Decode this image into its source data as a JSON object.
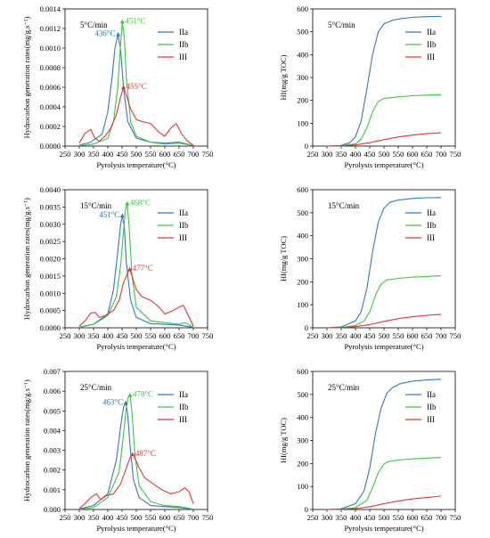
{
  "colors": {
    "IIa": "#2f78c4",
    "IIb": "#3cc83c",
    "III": "#e8342f",
    "axis": "#000000"
  },
  "chart_data": [
    {
      "type": "line",
      "annotation": "5°C/min",
      "xlabel": "Pyrolysis temperature(°C)",
      "ylabel": "Hydrocarbon generation rates(mg/g.s⁻¹)",
      "xlim": [
        250,
        750
      ],
      "ylim": [
        0,
        0.0014
      ],
      "xticks": [
        250,
        300,
        350,
        400,
        450,
        500,
        550,
        600,
        650,
        700,
        750
      ],
      "yticks": [
        "0.0000",
        "0.0002",
        "0.0004",
        "0.0006",
        "0.0008",
        "0.0010",
        "0.0012",
        "0.0014"
      ],
      "legend": "top-right",
      "series": [
        {
          "name": "IIa",
          "color_key": "IIa",
          "x": [
            300,
            340,
            380,
            400,
            415,
            425,
            436,
            445,
            455,
            470,
            500,
            550,
            600,
            650,
            700
          ],
          "y": [
            1e-05,
            4e-05,
            0.00012,
            0.00035,
            0.0007,
            0.001,
            0.00114,
            0.00098,
            0.0006,
            0.00025,
            8e-05,
            4e-05,
            3e-05,
            4e-05,
            5e-06
          ]
        },
        {
          "name": "IIb",
          "color_key": "IIb",
          "x": [
            300,
            350,
            400,
            420,
            435,
            445,
            451,
            458,
            465,
            480,
            500,
            550,
            600,
            650,
            700
          ],
          "y": [
            5e-06,
            2e-05,
            8e-05,
            0.00025,
            0.0006,
            0.00105,
            0.00127,
            0.0011,
            0.0007,
            0.00025,
            0.0001,
            4e-05,
            2e-05,
            3e-05,
            5e-06
          ]
        },
        {
          "name": "III",
          "color_key": "III",
          "x": [
            300,
            320,
            340,
            355,
            370,
            390,
            410,
            430,
            445,
            455,
            465,
            480,
            500,
            520,
            550,
            580,
            600,
            620,
            640,
            660,
            680,
            700
          ],
          "y": [
            3e-05,
            0.00013,
            0.00017,
            8e-05,
            5e-05,
            0.0001,
            0.00018,
            0.00032,
            0.0005,
            0.0006,
            0.00052,
            0.00038,
            0.00027,
            0.00025,
            0.00023,
            0.00014,
            0.0001,
            0.00018,
            0.00023,
            0.00012,
            5e-05,
            1e-05
          ]
        }
      ],
      "peak_labels": [
        {
          "text": "436°C",
          "x": 436,
          "y": 0.00114,
          "color_key": "IIa",
          "side": "left"
        },
        {
          "text": "451°C",
          "x": 451,
          "y": 0.00127,
          "color_key": "IIb",
          "side": "right"
        },
        {
          "text": "455°C",
          "x": 455,
          "y": 0.0006,
          "color_key": "III",
          "side": "right"
        }
      ]
    },
    {
      "type": "line",
      "annotation": "5°C/min",
      "xlabel": "Pyrolysis temperature(°C)",
      "ylabel": "HI(mg/g TOC)",
      "xlim": [
        250,
        750
      ],
      "ylim": [
        0,
        600
      ],
      "xticks": [
        250,
        300,
        350,
        400,
        450,
        500,
        550,
        600,
        650,
        700,
        750
      ],
      "yticks": [
        "0",
        "100",
        "200",
        "300",
        "400",
        "500",
        "600"
      ],
      "legend": "top-right",
      "series": [
        {
          "name": "IIa",
          "color_key": "IIa",
          "x": [
            300,
            350,
            380,
            400,
            420,
            440,
            460,
            480,
            500,
            530,
            560,
            600,
            650,
            700
          ],
          "y": [
            0,
            3,
            15,
            40,
            110,
            250,
            400,
            500,
            535,
            550,
            558,
            563,
            566,
            567
          ]
        },
        {
          "name": "IIb",
          "color_key": "IIb",
          "x": [
            300,
            350,
            400,
            420,
            440,
            460,
            480,
            500,
            550,
            600,
            650,
            700
          ],
          "y": [
            0,
            1,
            10,
            30,
            80,
            150,
            195,
            208,
            215,
            220,
            223,
            225
          ]
        },
        {
          "name": "III",
          "color_key": "III",
          "x": [
            300,
            350,
            400,
            450,
            500,
            550,
            600,
            650,
            700
          ],
          "y": [
            0,
            1,
            5,
            15,
            28,
            40,
            48,
            54,
            58
          ]
        }
      ]
    },
    {
      "type": "line",
      "annotation": "15°C/min",
      "xlabel": "Pyrolysis temperature(°C)",
      "ylabel": "Hydrocarbon generation rates(mg/g.s⁻¹)",
      "xlim": [
        250,
        750
      ],
      "ylim": [
        0,
        0.004
      ],
      "xticks": [
        250,
        300,
        350,
        400,
        450,
        500,
        550,
        600,
        650,
        700,
        750
      ],
      "yticks": [
        "0.0000",
        "0.0005",
        "0.0010",
        "0.0015",
        "0.0020",
        "0.0025",
        "0.0030",
        "0.0035",
        "0.0040"
      ],
      "legend": "top-right",
      "series": [
        {
          "name": "IIa",
          "color_key": "IIa",
          "x": [
            300,
            350,
            400,
            420,
            435,
            445,
            451,
            458,
            465,
            480,
            500,
            550,
            600,
            650,
            700
          ],
          "y": [
            2e-05,
            0.0001,
            0.0004,
            0.0011,
            0.0022,
            0.003,
            0.00325,
            0.0029,
            0.0019,
            0.0008,
            0.0003,
            0.00012,
            0.0001,
            8e-05,
            1e-05
          ]
        },
        {
          "name": "IIb",
          "color_key": "IIb",
          "x": [
            300,
            350,
            400,
            430,
            445,
            455,
            462,
            468,
            475,
            485,
            500,
            550,
            600,
            650,
            670,
            700
          ],
          "y": [
            1e-05,
            0.0001,
            0.00035,
            0.0009,
            0.0018,
            0.0028,
            0.0034,
            0.0036,
            0.0029,
            0.0015,
            0.0006,
            0.0002,
            0.00015,
            0.0001,
            0.00015,
            2e-05
          ]
        },
        {
          "name": "III",
          "color_key": "III",
          "x": [
            300,
            320,
            340,
            355,
            370,
            390,
            420,
            440,
            455,
            470,
            477,
            485,
            500,
            520,
            550,
            580,
            600,
            630,
            650,
            665,
            680,
            700
          ],
          "y": [
            5e-05,
            0.0002,
            0.00042,
            0.00045,
            0.0003,
            0.00035,
            0.0005,
            0.0008,
            0.0013,
            0.0016,
            0.0017,
            0.0015,
            0.0011,
            0.0009,
            0.0008,
            0.0006,
            0.0004,
            0.0005,
            0.0006,
            0.00065,
            0.0004,
            5e-05
          ]
        }
      ],
      "peak_labels": [
        {
          "text": "451°C",
          "x": 451,
          "y": 0.00325,
          "color_key": "IIa",
          "side": "left"
        },
        {
          "text": "468°C",
          "x": 468,
          "y": 0.0036,
          "color_key": "IIb",
          "side": "right"
        },
        {
          "text": "477°C",
          "x": 477,
          "y": 0.0017,
          "color_key": "III",
          "side": "right"
        }
      ]
    },
    {
      "type": "line",
      "annotation": "15°C/min",
      "xlabel": "Pyrolysis temperature(°C)",
      "ylabel": "HI(mg/g TOC)",
      "xlim": [
        250,
        750
      ],
      "ylim": [
        0,
        600
      ],
      "xticks": [
        250,
        300,
        350,
        400,
        450,
        500,
        550,
        600,
        650,
        700,
        750
      ],
      "yticks": [
        "0",
        "100",
        "200",
        "300",
        "400",
        "500",
        "600"
      ],
      "legend": "top-right",
      "series": [
        {
          "name": "IIa",
          "color_key": "IIa",
          "x": [
            300,
            350,
            400,
            420,
            440,
            460,
            480,
            500,
            520,
            550,
            600,
            650,
            700
          ],
          "y": [
            0,
            4,
            30,
            70,
            170,
            330,
            460,
            520,
            545,
            555,
            562,
            565,
            566
          ]
        },
        {
          "name": "IIb",
          "color_key": "IIb",
          "x": [
            300,
            350,
            400,
            430,
            450,
            470,
            490,
            510,
            550,
            600,
            650,
            700
          ],
          "y": [
            0,
            1,
            10,
            30,
            70,
            140,
            190,
            208,
            215,
            220,
            223,
            226
          ]
        },
        {
          "name": "III",
          "color_key": "III",
          "x": [
            300,
            350,
            400,
            450,
            500,
            550,
            600,
            650,
            700
          ],
          "y": [
            0,
            1,
            5,
            14,
            28,
            40,
            48,
            54,
            59
          ]
        }
      ]
    },
    {
      "type": "line",
      "annotation": "25°C/min",
      "xlabel": "Pyrolysis temperature(°C)",
      "ylabel": "Hydrocarbon generation rates(mg/g.s⁻¹)",
      "xlim": [
        250,
        750
      ],
      "ylim": [
        0,
        0.007
      ],
      "xticks": [
        250,
        300,
        350,
        400,
        450,
        500,
        550,
        600,
        650,
        700,
        750
      ],
      "yticks": [
        "0.000",
        "0.001",
        "0.002",
        "0.003",
        "0.004",
        "0.005",
        "0.006",
        "0.007"
      ],
      "legend": "top-right",
      "series": [
        {
          "name": "IIa",
          "color_key": "IIa",
          "x": [
            300,
            350,
            400,
            430,
            445,
            455,
            463,
            470,
            478,
            490,
            510,
            550,
            600,
            650,
            700
          ],
          "y": [
            3e-05,
            0.0002,
            0.0008,
            0.0025,
            0.0042,
            0.0052,
            0.0054,
            0.0048,
            0.0032,
            0.0015,
            0.0006,
            0.0002,
            0.00015,
            0.0001,
            2e-05
          ]
        },
        {
          "name": "IIb",
          "color_key": "IIb",
          "x": [
            300,
            350,
            400,
            440,
            455,
            465,
            472,
            478,
            485,
            495,
            510,
            550,
            600,
            650,
            700
          ],
          "y": [
            2e-05,
            0.0001,
            0.0006,
            0.0019,
            0.0038,
            0.0052,
            0.0057,
            0.0058,
            0.0049,
            0.0028,
            0.0012,
            0.0004,
            0.0002,
            0.00015,
            2e-05
          ]
        },
        {
          "name": "III",
          "color_key": "III",
          "x": [
            300,
            320,
            340,
            360,
            375,
            395,
            420,
            445,
            465,
            480,
            487,
            495,
            510,
            530,
            560,
            590,
            620,
            650,
            670,
            685,
            700
          ],
          "y": [
            5e-05,
            0.0003,
            0.0006,
            0.0008,
            0.0005,
            0.0007,
            0.0008,
            0.0013,
            0.0021,
            0.0027,
            0.0028,
            0.0026,
            0.0021,
            0.0016,
            0.0013,
            0.001,
            0.0008,
            0.0009,
            0.0011,
            0.0009,
            0.0003
          ]
        }
      ],
      "peak_labels": [
        {
          "text": "463°C",
          "x": 463,
          "y": 0.0054,
          "color_key": "IIa",
          "side": "left"
        },
        {
          "text": "478°C",
          "x": 478,
          "y": 0.0058,
          "color_key": "IIb",
          "side": "right"
        },
        {
          "text": "487°C",
          "x": 487,
          "y": 0.0028,
          "color_key": "III",
          "side": "right"
        }
      ]
    },
    {
      "type": "line",
      "annotation": "25°C/min",
      "xlabel": "Pyrolysis temperature(°C)",
      "ylabel": "HI(mg/g TOC)",
      "xlim": [
        250,
        750
      ],
      "ylim": [
        0,
        600
      ],
      "xticks": [
        250,
        300,
        350,
        400,
        450,
        500,
        550,
        600,
        650,
        700,
        750
      ],
      "yticks": [
        "0",
        "100",
        "200",
        "300",
        "400",
        "500",
        "600"
      ],
      "legend": "top-right",
      "series": [
        {
          "name": "IIa",
          "color_key": "IIa",
          "x": [
            300,
            350,
            400,
            430,
            450,
            470,
            490,
            510,
            530,
            560,
            600,
            650,
            700
          ],
          "y": [
            0,
            3,
            25,
            80,
            180,
            330,
            440,
            505,
            530,
            548,
            558,
            563,
            566
          ]
        },
        {
          "name": "IIb",
          "color_key": "IIb",
          "x": [
            300,
            350,
            400,
            440,
            460,
            480,
            500,
            520,
            550,
            600,
            650,
            700
          ],
          "y": [
            0,
            1,
            8,
            40,
            95,
            160,
            198,
            210,
            215,
            220,
            223,
            226
          ]
        },
        {
          "name": "III",
          "color_key": "III",
          "x": [
            300,
            350,
            400,
            450,
            500,
            550,
            600,
            650,
            700
          ],
          "y": [
            0,
            1,
            4,
            12,
            25,
            37,
            46,
            52,
            58
          ]
        }
      ]
    }
  ]
}
